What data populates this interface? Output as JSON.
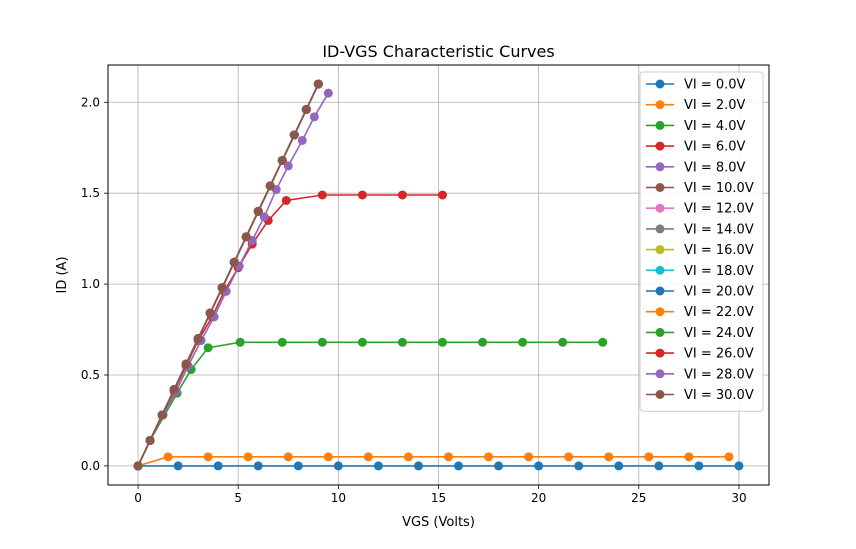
{
  "chart_data": {
    "type": "line",
    "title": "ID-VGS Characteristic Curves",
    "xlabel": "VGS (Volts)",
    "ylabel": "ID (A)",
    "xlim": [
      -1.5,
      31.5
    ],
    "ylim": [
      -0.105,
      2.205
    ],
    "xticks": [
      0,
      5,
      10,
      15,
      20,
      25,
      30
    ],
    "xtick_labels": [
      "0",
      "5",
      "10",
      "15",
      "20",
      "25",
      "30"
    ],
    "yticks": [
      0.0,
      0.5,
      1.0,
      1.5,
      2.0
    ],
    "ytick_labels": [
      "0.0",
      "0.5",
      "1.0",
      "1.5",
      "2.0"
    ],
    "grid": true,
    "legend_position": "top-right",
    "markers": "circle",
    "series": [
      {
        "name": "VI = 0.0V",
        "color": "#1f77b4",
        "x": [
          0,
          2,
          4,
          6,
          8,
          10,
          12,
          14,
          16,
          18,
          20,
          22,
          24,
          26,
          28,
          30
        ],
        "y": [
          0,
          0,
          0,
          0,
          0,
          0,
          0,
          0,
          0,
          0,
          0,
          0,
          0,
          0,
          0,
          0
        ]
      },
      {
        "name": "VI = 2.0V",
        "color": "#ff7f0e",
        "x": [
          0,
          1.5,
          3.5,
          5.5,
          7.5,
          9.5,
          11.5,
          13.5,
          15.5,
          17.5,
          19.5,
          21.5,
          23.5,
          25.5,
          27.5,
          29.5
        ],
        "y": [
          0,
          0.05,
          0.05,
          0.05,
          0.05,
          0.05,
          0.05,
          0.05,
          0.05,
          0.05,
          0.05,
          0.05,
          0.05,
          0.05,
          0.05,
          0.05
        ]
      },
      {
        "name": "VI = 4.0V",
        "color": "#2ca02c",
        "x": [
          0,
          0.6,
          1.95,
          2.65,
          3.5,
          5.1,
          7.2,
          9.2,
          11.2,
          13.2,
          15.2,
          17.2,
          19.2,
          21.2,
          23.2
        ],
        "y": [
          0,
          0.14,
          0.4,
          0.53,
          0.65,
          0.68,
          0.68,
          0.68,
          0.68,
          0.68,
          0.68,
          0.68,
          0.68,
          0.68,
          0.68
        ]
      },
      {
        "name": "VI = 6.0V",
        "color": "#d62728",
        "x": [
          0,
          0.6,
          1.2,
          1.8,
          2.4,
          3.0,
          3.7,
          4.3,
          5.0,
          5.7,
          6.5,
          7.4,
          9.2,
          11.2,
          13.2,
          15.2
        ],
        "y": [
          0,
          0.14,
          0.28,
          0.41,
          0.55,
          0.69,
          0.82,
          0.96,
          1.09,
          1.22,
          1.35,
          1.46,
          1.49,
          1.49,
          1.49,
          1.49
        ]
      },
      {
        "name": "VI = 8.0V",
        "color": "#9467bd",
        "x": [
          0,
          0.6,
          1.25,
          1.9,
          2.5,
          3.15,
          3.8,
          4.4,
          5.05,
          5.7,
          6.3,
          6.9,
          7.5,
          8.2,
          8.8,
          9.5
        ],
        "y": [
          0,
          0.14,
          0.28,
          0.41,
          0.55,
          0.69,
          0.82,
          0.96,
          1.1,
          1.24,
          1.37,
          1.52,
          1.65,
          1.79,
          1.92,
          2.05
        ]
      },
      {
        "name": "VI = 10.0V",
        "color": "#8c564b",
        "x": [
          0,
          0.6,
          1.2,
          1.8,
          2.4,
          3.0,
          3.6,
          4.2,
          4.8,
          5.4,
          6.0,
          6.6,
          7.2,
          7.8,
          8.4,
          9.0
        ],
        "y": [
          0,
          0.14,
          0.28,
          0.42,
          0.56,
          0.7,
          0.84,
          0.98,
          1.12,
          1.26,
          1.4,
          1.54,
          1.68,
          1.82,
          1.96,
          2.1
        ]
      },
      {
        "name": "VI = 12.0V",
        "color": "#e377c2",
        "x": [
          0,
          0.6,
          1.2,
          1.8,
          2.4,
          3.0,
          3.6,
          4.2,
          4.8,
          5.4,
          6.0,
          6.6,
          7.2,
          7.8,
          8.4,
          9.0
        ],
        "y": [
          0,
          0.14,
          0.28,
          0.42,
          0.56,
          0.7,
          0.84,
          0.98,
          1.12,
          1.26,
          1.4,
          1.54,
          1.68,
          1.82,
          1.96,
          2.1
        ]
      },
      {
        "name": "VI = 14.0V",
        "color": "#7f7f7f",
        "x": [
          0,
          0.6,
          1.2,
          1.8,
          2.4,
          3.0,
          3.6,
          4.2,
          4.8,
          5.4,
          6.0,
          6.6,
          7.2,
          7.8,
          8.4,
          9.0
        ],
        "y": [
          0,
          0.14,
          0.28,
          0.42,
          0.56,
          0.7,
          0.84,
          0.98,
          1.12,
          1.26,
          1.4,
          1.54,
          1.68,
          1.82,
          1.96,
          2.1
        ]
      },
      {
        "name": "VI = 16.0V",
        "color": "#bcbd22",
        "x": [
          0,
          0.6,
          1.2,
          1.8,
          2.4,
          3.0,
          3.6,
          4.2,
          4.8,
          5.4,
          6.0,
          6.6,
          7.2,
          7.8,
          8.4,
          9.0
        ],
        "y": [
          0,
          0.14,
          0.28,
          0.42,
          0.56,
          0.7,
          0.84,
          0.98,
          1.12,
          1.26,
          1.4,
          1.54,
          1.68,
          1.82,
          1.96,
          2.1
        ]
      },
      {
        "name": "VI = 18.0V",
        "color": "#17becf",
        "x": [
          0,
          0.6,
          1.2,
          1.8,
          2.4,
          3.0,
          3.6,
          4.2,
          4.8,
          5.4,
          6.0,
          6.6,
          7.2,
          7.8,
          8.4,
          9.0
        ],
        "y": [
          0,
          0.14,
          0.28,
          0.42,
          0.56,
          0.7,
          0.84,
          0.98,
          1.12,
          1.26,
          1.4,
          1.54,
          1.68,
          1.82,
          1.96,
          2.1
        ]
      },
      {
        "name": "VI = 20.0V",
        "color": "#1f77b4",
        "x": [
          0,
          0.6,
          1.2,
          1.8,
          2.4,
          3.0,
          3.6,
          4.2,
          4.8,
          5.4,
          6.0,
          6.6,
          7.2,
          7.8,
          8.4,
          9.0
        ],
        "y": [
          0,
          0.14,
          0.28,
          0.42,
          0.56,
          0.7,
          0.84,
          0.98,
          1.12,
          1.26,
          1.4,
          1.54,
          1.68,
          1.82,
          1.96,
          2.1
        ]
      },
      {
        "name": "VI = 22.0V",
        "color": "#ff7f0e",
        "x": [
          0,
          0.6,
          1.2,
          1.8,
          2.4,
          3.0,
          3.6,
          4.2,
          4.8,
          5.4,
          6.0,
          6.6,
          7.2,
          7.8,
          8.4,
          9.0
        ],
        "y": [
          0,
          0.14,
          0.28,
          0.42,
          0.56,
          0.7,
          0.84,
          0.98,
          1.12,
          1.26,
          1.4,
          1.54,
          1.68,
          1.82,
          1.96,
          2.1
        ]
      },
      {
        "name": "VI = 24.0V",
        "color": "#2ca02c",
        "x": [
          0,
          0.6,
          1.2,
          1.8,
          2.4,
          3.0,
          3.6,
          4.2,
          4.8,
          5.4,
          6.0,
          6.6,
          7.2,
          7.8,
          8.4,
          9.0
        ],
        "y": [
          0,
          0.14,
          0.28,
          0.42,
          0.56,
          0.7,
          0.84,
          0.98,
          1.12,
          1.26,
          1.4,
          1.54,
          1.68,
          1.82,
          1.96,
          2.1
        ]
      },
      {
        "name": "VI = 26.0V",
        "color": "#d62728",
        "x": [
          0,
          0.6,
          1.2,
          1.8,
          2.4,
          3.0,
          3.6,
          4.2,
          4.8,
          5.4,
          6.0,
          6.6,
          7.2,
          7.8,
          8.4,
          9.0
        ],
        "y": [
          0,
          0.14,
          0.28,
          0.42,
          0.56,
          0.7,
          0.84,
          0.98,
          1.12,
          1.26,
          1.4,
          1.54,
          1.68,
          1.82,
          1.96,
          2.1
        ]
      },
      {
        "name": "VI = 28.0V",
        "color": "#9467bd",
        "x": [
          0,
          0.6,
          1.2,
          1.8,
          2.4,
          3.0,
          3.6,
          4.2,
          4.8,
          5.4,
          6.0,
          6.6,
          7.2,
          7.8,
          8.4,
          9.0
        ],
        "y": [
          0,
          0.14,
          0.28,
          0.42,
          0.56,
          0.7,
          0.84,
          0.98,
          1.12,
          1.26,
          1.4,
          1.54,
          1.68,
          1.82,
          1.96,
          2.1
        ]
      },
      {
        "name": "VI = 30.0V",
        "color": "#8c564b",
        "x": [
          0,
          0.6,
          1.2,
          1.8,
          2.4,
          3.0,
          3.6,
          4.2,
          4.8,
          5.4,
          6.0,
          6.6,
          7.2,
          7.8,
          8.4,
          9.0
        ],
        "y": [
          0,
          0.14,
          0.28,
          0.42,
          0.56,
          0.7,
          0.84,
          0.98,
          1.12,
          1.26,
          1.4,
          1.54,
          1.68,
          1.82,
          1.96,
          2.1
        ]
      }
    ]
  }
}
